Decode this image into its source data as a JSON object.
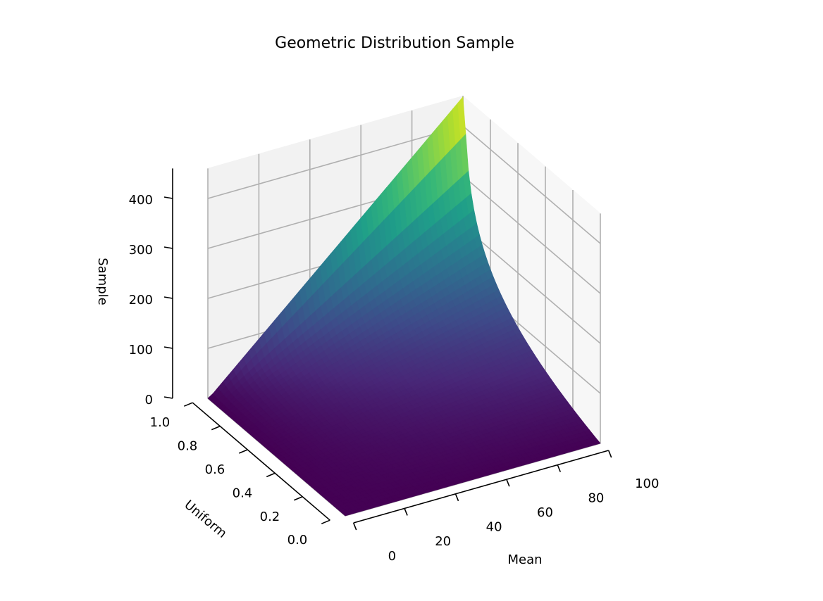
{
  "chart_data": {
    "type": "surface",
    "title": "Geometric Distribution Sample",
    "xlabel": "Mean",
    "ylabel": "Uniform",
    "zlabel": "Sample",
    "xlim": [
      0,
      100
    ],
    "ylim": [
      0,
      1
    ],
    "zlim": [
      0,
      460
    ],
    "xticks": [
      0,
      20,
      40,
      60,
      80,
      100
    ],
    "yticks": [
      0.0,
      0.2,
      0.4,
      0.6,
      0.8,
      1.0
    ],
    "zticks": [
      0,
      100,
      200,
      300,
      400
    ],
    "xtick_labels": [
      "0",
      "20",
      "40",
      "60",
      "80",
      "100"
    ],
    "ytick_labels": [
      "0.0",
      "0.2",
      "0.4",
      "0.6",
      "0.8",
      "1.0"
    ],
    "ztick_labels": [
      "0",
      "100",
      "200",
      "300",
      "400"
    ],
    "surface": "sample = floor(ln(1 - uniform) / ln(1 - 1/mean))",
    "surface_corners": [
      {
        "mean": 0,
        "uniform": 0,
        "sample": 0
      },
      {
        "mean": 0,
        "uniform": 1,
        "sample": 0
      },
      {
        "mean": 100,
        "uniform": 0,
        "sample": 0
      },
      {
        "mean": 100,
        "uniform": 1,
        "sample": 450
      }
    ],
    "colormap": "viridis",
    "grid": true
  }
}
